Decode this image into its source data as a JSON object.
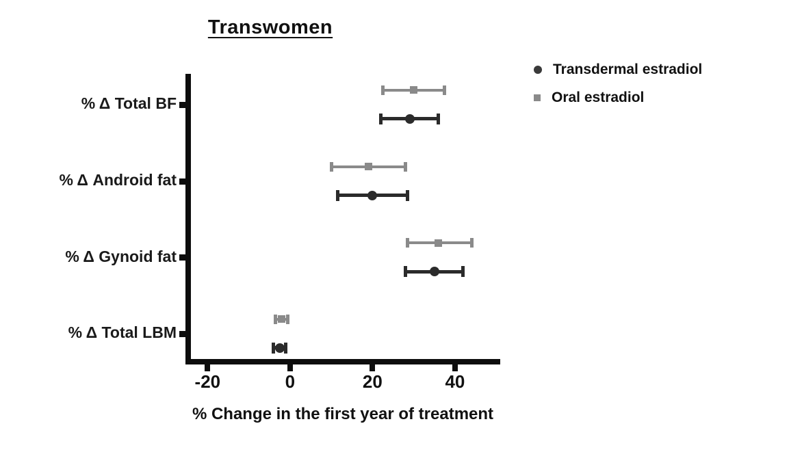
{
  "title": "Transwomen",
  "legend": {
    "items": [
      {
        "label": "Transdermal estradiol",
        "marker": "circle",
        "color": "#3a3a3a"
      },
      {
        "label": "Oral estradiol",
        "marker": "square",
        "color": "#8a8a8a"
      }
    ]
  },
  "chart_data": {
    "type": "scatter",
    "subtype": "horizontal-error-bar-dot-plot",
    "title": "Transwomen",
    "xlabel": "% Change in the first year of treatment",
    "categories": [
      "% Δ Total BF",
      "% Δ Android fat",
      "% Δ Gynoid fat",
      "% Δ Total LBM"
    ],
    "series": [
      {
        "name": "Transdermal estradiol",
        "marker": "circle",
        "color": "#2b2b2b",
        "values": [
          29,
          20,
          35,
          -2.5
        ],
        "ci_low": [
          22,
          11.5,
          28,
          -4
        ],
        "ci_high": [
          36,
          28.5,
          42,
          -1
        ]
      },
      {
        "name": "Oral estradiol",
        "marker": "square",
        "color": "#8a8a8a",
        "values": [
          30,
          19,
          36,
          -2
        ],
        "ci_low": [
          22.5,
          10,
          28.5,
          -3.5
        ],
        "ci_high": [
          37.5,
          28,
          44,
          -0.5
        ]
      }
    ],
    "xlim": [
      -25.2,
      50.8
    ],
    "xticks": [
      -20,
      0,
      20,
      40
    ],
    "grid": false,
    "legend_position": "top-right"
  }
}
